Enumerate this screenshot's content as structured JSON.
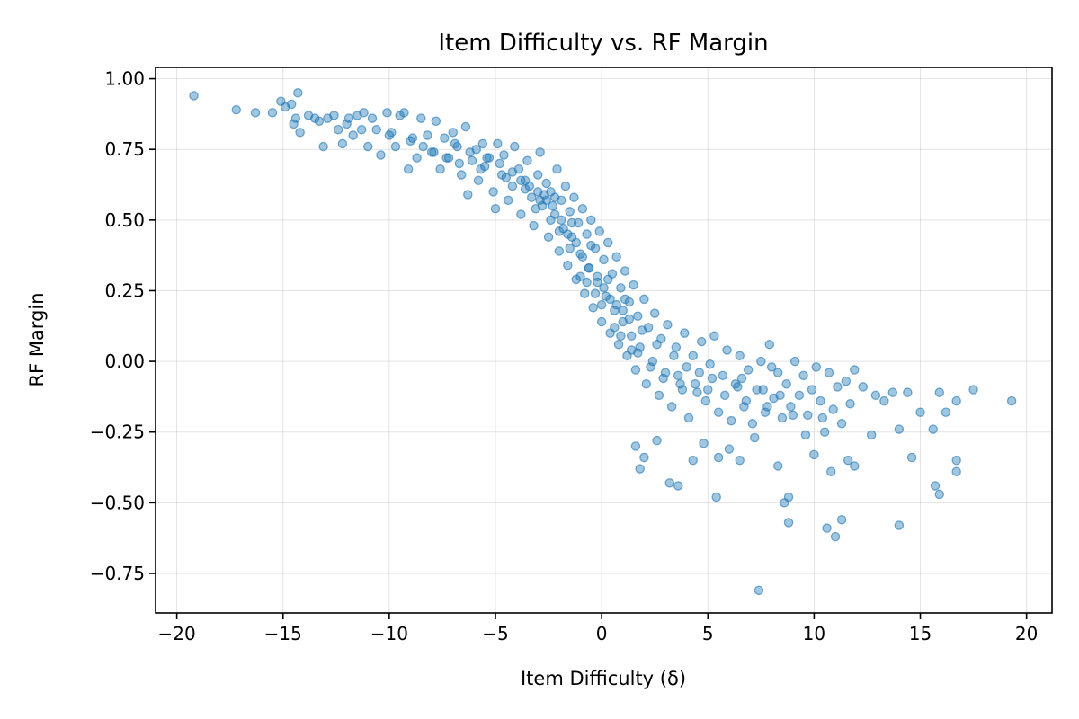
{
  "chart_data": {
    "type": "scatter",
    "title": "Item Difficulty vs. RF Margin",
    "xlabel": "Item Difficulty (δ)",
    "ylabel": "RF Margin",
    "xlim": [
      -21,
      21.2
    ],
    "ylim": [
      -0.89,
      1.04
    ],
    "x_ticks": [
      -20,
      -15,
      -10,
      -5,
      0,
      5,
      10,
      15,
      20
    ],
    "x_tick_labels": [
      "−20",
      "−15",
      "−10",
      "−5",
      "0",
      "5",
      "10",
      "15",
      "20"
    ],
    "y_ticks": [
      -0.75,
      -0.5,
      -0.25,
      0.0,
      0.25,
      0.5,
      0.75,
      1.0
    ],
    "y_tick_labels": [
      "−0.75",
      "−0.50",
      "−0.25",
      "0.00",
      "0.25",
      "0.50",
      "0.75",
      "1.00"
    ],
    "grid": true,
    "series": [
      {
        "color": "#1f77b4",
        "points": [
          [
            -19.2,
            0.94
          ],
          [
            -17.2,
            0.89
          ],
          [
            -16.3,
            0.88
          ],
          [
            -15.5,
            0.88
          ],
          [
            -15.1,
            0.92
          ],
          [
            -14.9,
            0.9
          ],
          [
            -14.6,
            0.91
          ],
          [
            -14.3,
            0.95
          ],
          [
            -14.4,
            0.86
          ],
          [
            -14.2,
            0.81
          ],
          [
            -14.5,
            0.84
          ],
          [
            -13.8,
            0.87
          ],
          [
            -13.5,
            0.86
          ],
          [
            -13.3,
            0.85
          ],
          [
            -13.1,
            0.76
          ],
          [
            -12.9,
            0.86
          ],
          [
            -12.6,
            0.87
          ],
          [
            -12.4,
            0.82
          ],
          [
            -12.2,
            0.77
          ],
          [
            -11.9,
            0.86
          ],
          [
            -11.7,
            0.8
          ],
          [
            -11.5,
            0.87
          ],
          [
            -11.2,
            0.88
          ],
          [
            -11.0,
            0.76
          ],
          [
            -10.8,
            0.86
          ],
          [
            -10.6,
            0.82
          ],
          [
            -10.4,
            0.73
          ],
          [
            -10.1,
            0.88
          ],
          [
            -9.9,
            0.81
          ],
          [
            -9.7,
            0.76
          ],
          [
            -9.5,
            0.87
          ],
          [
            -9.3,
            0.88
          ],
          [
            -9.1,
            0.68
          ],
          [
            -8.9,
            0.79
          ],
          [
            -8.7,
            0.72
          ],
          [
            -8.5,
            0.86
          ],
          [
            -8.2,
            0.8
          ],
          [
            -8.0,
            0.74
          ],
          [
            -7.8,
            0.85
          ],
          [
            -7.6,
            0.68
          ],
          [
            -7.4,
            0.79
          ],
          [
            -7.2,
            0.72
          ],
          [
            -7.0,
            0.81
          ],
          [
            -6.8,
            0.76
          ],
          [
            -6.6,
            0.66
          ],
          [
            -6.4,
            0.83
          ],
          [
            -6.3,
            0.59
          ],
          [
            -6.1,
            0.71
          ],
          [
            -5.9,
            0.75
          ],
          [
            -5.8,
            0.64
          ],
          [
            -5.6,
            0.77
          ],
          [
            -5.5,
            0.69
          ],
          [
            -5.3,
            0.72
          ],
          [
            -5.1,
            0.6
          ],
          [
            -5.0,
            0.54
          ],
          [
            -4.9,
            0.77
          ],
          [
            -4.7,
            0.66
          ],
          [
            -4.6,
            0.73
          ],
          [
            -4.4,
            0.57
          ],
          [
            -4.2,
            0.62
          ],
          [
            -4.1,
            0.76
          ],
          [
            -3.9,
            0.68
          ],
          [
            -3.8,
            0.52
          ],
          [
            -3.6,
            0.64
          ],
          [
            -3.5,
            0.71
          ],
          [
            -3.3,
            0.58
          ],
          [
            -3.2,
            0.48
          ],
          [
            -3.0,
            0.66
          ],
          [
            -2.9,
            0.74
          ],
          [
            -2.8,
            0.55
          ],
          [
            -2.6,
            0.63
          ],
          [
            -2.5,
            0.44
          ],
          [
            -2.4,
            0.6
          ],
          [
            -2.2,
            0.52
          ],
          [
            -2.1,
            0.68
          ],
          [
            -2.0,
            0.39
          ],
          [
            -1.9,
            0.57
          ],
          [
            -1.8,
            0.47
          ],
          [
            -1.7,
            0.62
          ],
          [
            -1.6,
            0.34
          ],
          [
            -1.5,
            0.53
          ],
          [
            -1.4,
            0.44
          ],
          [
            -1.3,
            0.58
          ],
          [
            -1.2,
            0.29
          ],
          [
            -1.1,
            0.49
          ],
          [
            -1.0,
            0.38
          ],
          [
            -0.9,
            0.54
          ],
          [
            -0.8,
            0.24
          ],
          [
            -0.7,
            0.45
          ],
          [
            -0.6,
            0.33
          ],
          [
            -0.5,
            0.5
          ],
          [
            -0.4,
            0.19
          ],
          [
            -0.3,
            0.4
          ],
          [
            -0.2,
            0.28
          ],
          [
            -0.1,
            0.46
          ],
          [
            0.0,
            0.14
          ],
          [
            0.1,
            0.36
          ],
          [
            0.2,
            0.23
          ],
          [
            0.3,
            0.42
          ],
          [
            0.4,
            0.1
          ],
          [
            0.5,
            0.31
          ],
          [
            0.6,
            0.18
          ],
          [
            0.7,
            0.37
          ],
          [
            0.8,
            0.06
          ],
          [
            0.9,
            0.26
          ],
          [
            1.0,
            0.14
          ],
          [
            1.1,
            0.32
          ],
          [
            1.2,
            0.02
          ],
          [
            1.3,
            0.21
          ],
          [
            1.4,
            0.09
          ],
          [
            1.5,
            0.27
          ],
          [
            1.6,
            -0.03
          ],
          [
            1.7,
            0.16
          ],
          [
            1.8,
            0.05
          ],
          [
            2.0,
            0.22
          ],
          [
            2.1,
            -0.08
          ],
          [
            2.2,
            0.12
          ],
          [
            2.4,
            0.0
          ],
          [
            2.5,
            0.17
          ],
          [
            2.7,
            -0.12
          ],
          [
            2.8,
            0.08
          ],
          [
            3.0,
            -0.04
          ],
          [
            3.1,
            0.13
          ],
          [
            3.3,
            -0.16
          ],
          [
            3.5,
            0.05
          ],
          [
            3.7,
            -0.08
          ],
          [
            3.9,
            0.1
          ],
          [
            4.1,
            -0.2
          ],
          [
            4.3,
            0.02
          ],
          [
            4.5,
            -0.11
          ],
          [
            4.7,
            0.07
          ],
          [
            4.9,
            -0.14
          ],
          [
            5.1,
            -0.01
          ],
          [
            5.3,
            0.09
          ],
          [
            5.5,
            -0.18
          ],
          [
            5.7,
            -0.05
          ],
          [
            5.9,
            0.04
          ],
          [
            6.1,
            -0.21
          ],
          [
            6.3,
            -0.08
          ],
          [
            6.5,
            0.02
          ],
          [
            6.7,
            -0.16
          ],
          [
            6.9,
            -0.03
          ],
          [
            7.1,
            -0.22
          ],
          [
            7.3,
            -0.1
          ],
          [
            7.5,
            0.0
          ],
          [
            7.7,
            -0.18
          ],
          [
            7.9,
            0.06
          ],
          [
            8.1,
            -0.13
          ],
          [
            8.3,
            -0.04
          ],
          [
            8.5,
            -0.2
          ],
          [
            8.7,
            -0.08
          ],
          [
            8.9,
            -0.16
          ],
          [
            9.1,
            0.0
          ],
          [
            9.3,
            -0.12
          ],
          [
            9.5,
            -0.05
          ],
          [
            9.7,
            -0.19
          ],
          [
            9.9,
            -0.1
          ],
          [
            10.1,
            -0.02
          ],
          [
            10.3,
            -0.14
          ],
          [
            10.5,
            -0.25
          ],
          [
            10.7,
            -0.04
          ],
          [
            10.9,
            -0.17
          ],
          [
            11.1,
            -0.09
          ],
          [
            11.3,
            -0.22
          ],
          [
            11.5,
            -0.07
          ],
          [
            11.7,
            -0.15
          ],
          [
            11.9,
            -0.03
          ],
          [
            12.3,
            -0.09
          ],
          [
            12.7,
            -0.26
          ],
          [
            12.9,
            -0.12
          ],
          [
            13.3,
            -0.14
          ],
          [
            13.7,
            -0.11
          ],
          [
            14.0,
            -0.24
          ],
          [
            14.4,
            -0.11
          ],
          [
            15.0,
            -0.18
          ],
          [
            15.6,
            -0.24
          ],
          [
            15.9,
            -0.11
          ],
          [
            16.2,
            -0.18
          ],
          [
            16.7,
            -0.14
          ],
          [
            17.5,
            -0.1
          ],
          [
            19.3,
            -0.14
          ],
          [
            1.6,
            -0.3
          ],
          [
            1.8,
            -0.38
          ],
          [
            2.6,
            -0.28
          ],
          [
            3.2,
            -0.43
          ],
          [
            3.6,
            -0.44
          ],
          [
            4.3,
            -0.35
          ],
          [
            5.4,
            -0.48
          ],
          [
            5.5,
            -0.34
          ],
          [
            6.5,
            -0.35
          ],
          [
            7.4,
            -0.81
          ],
          [
            8.6,
            -0.5
          ],
          [
            8.8,
            -0.57
          ],
          [
            8.8,
            -0.48
          ],
          [
            10.0,
            -0.33
          ],
          [
            10.6,
            -0.59
          ],
          [
            10.8,
            -0.39
          ],
          [
            11.0,
            -0.62
          ],
          [
            11.3,
            -0.56
          ],
          [
            11.6,
            -0.35
          ],
          [
            11.9,
            -0.37
          ],
          [
            14.0,
            -0.58
          ],
          [
            14.6,
            -0.34
          ],
          [
            15.7,
            -0.44
          ],
          [
            15.9,
            -0.47
          ],
          [
            16.7,
            -0.39
          ],
          [
            16.7,
            -0.35
          ],
          [
            2.0,
            -0.34
          ],
          [
            4.8,
            -0.29
          ],
          [
            6.0,
            -0.31
          ],
          [
            7.2,
            -0.27
          ],
          [
            8.3,
            -0.37
          ],
          [
            9.6,
            -0.26
          ],
          [
            -3.0,
            0.6
          ],
          [
            -2.6,
            0.57
          ],
          [
            -2.3,
            0.55
          ],
          [
            -1.9,
            0.5
          ],
          [
            -1.6,
            0.45
          ],
          [
            -1.2,
            0.42
          ],
          [
            -0.9,
            0.37
          ],
          [
            -0.6,
            0.33
          ],
          [
            -0.2,
            0.3
          ],
          [
            0.1,
            0.26
          ],
          [
            0.4,
            0.22
          ],
          [
            0.7,
            0.2
          ],
          [
            1.0,
            0.18
          ],
          [
            1.3,
            0.15
          ],
          [
            -4.2,
            0.67
          ],
          [
            -3.8,
            0.64
          ],
          [
            -3.4,
            0.62
          ],
          [
            -2.7,
            0.59
          ],
          [
            -2.2,
            0.58
          ],
          [
            -1.4,
            0.49
          ],
          [
            -0.5,
            0.41
          ],
          [
            0.3,
            0.29
          ],
          [
            1.1,
            0.22
          ],
          [
            1.9,
            0.11
          ],
          [
            2.6,
            0.06
          ],
          [
            3.4,
            0.02
          ],
          [
            4.0,
            -0.02
          ],
          [
            4.6,
            -0.04
          ],
          [
            5.2,
            -0.06
          ],
          [
            6.4,
            -0.09
          ],
          [
            7.6,
            -0.1
          ],
          [
            8.4,
            -0.12
          ],
          [
            -6.9,
            0.77
          ],
          [
            -6.2,
            0.74
          ],
          [
            -5.4,
            0.72
          ],
          [
            -4.8,
            0.7
          ],
          [
            -3.1,
            0.54
          ],
          [
            -2.4,
            0.5
          ],
          [
            -1.0,
            0.3
          ],
          [
            -0.3,
            0.24
          ],
          [
            0.6,
            0.12
          ],
          [
            1.4,
            0.04
          ],
          [
            2.3,
            -0.02
          ],
          [
            3.6,
            -0.05
          ],
          [
            4.4,
            -0.08
          ],
          [
            5.8,
            -0.12
          ],
          [
            6.8,
            -0.14
          ],
          [
            7.8,
            -0.16
          ],
          [
            9.0,
            -0.19
          ],
          [
            10.4,
            -0.2
          ],
          [
            -12.0,
            0.84
          ],
          [
            -11.3,
            0.82
          ],
          [
            -10.0,
            0.8
          ],
          [
            -9.0,
            0.78
          ],
          [
            -8.4,
            0.76
          ],
          [
            -7.9,
            0.74
          ],
          [
            -7.3,
            0.72
          ],
          [
            -6.7,
            0.7
          ],
          [
            -5.7,
            0.68
          ],
          [
            -4.5,
            0.65
          ],
          [
            -3.6,
            0.61
          ],
          [
            -2.9,
            0.57
          ],
          [
            -2.0,
            0.46
          ],
          [
            -1.5,
            0.4
          ],
          [
            -0.7,
            0.28
          ],
          [
            0.0,
            0.2
          ],
          [
            0.9,
            0.09
          ],
          [
            1.7,
            0.03
          ],
          [
            2.9,
            -0.06
          ],
          [
            3.8,
            -0.1
          ],
          [
            5.0,
            -0.1
          ],
          [
            6.6,
            -0.06
          ],
          [
            8.0,
            -0.02
          ]
        ]
      }
    ]
  }
}
